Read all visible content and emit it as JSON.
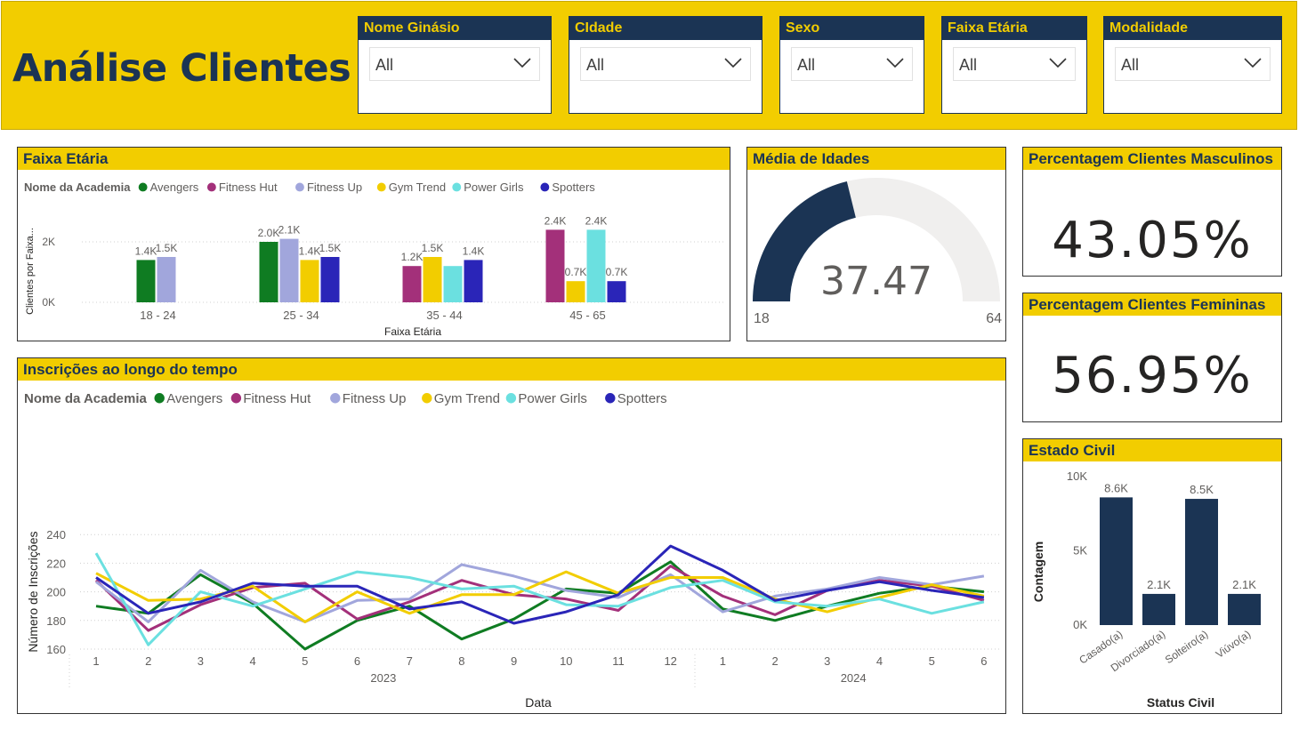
{
  "header": {
    "title": "Análise Clientes"
  },
  "slicers": [
    {
      "label": "Nome Ginásio",
      "value": "All"
    },
    {
      "label": "CIdade",
      "value": "All"
    },
    {
      "label": "Sexo",
      "value": "All"
    },
    {
      "label": "Faixa Etária",
      "value": "All"
    },
    {
      "label": "Modalidade",
      "value": "All"
    }
  ],
  "age_chart": {
    "title": "Faixa Etária",
    "legend_title": "Nome da Academia",
    "ylabel": "Clientes por Faixa...",
    "xlabel": "Faixa Etária",
    "yticks": [
      "2K",
      "0K"
    ]
  },
  "gauge": {
    "title": "Média de Idades",
    "value": "37.47",
    "min_label": "18",
    "max_label": "64",
    "min": 18,
    "max": 64,
    "current": 37.47
  },
  "male_card": {
    "title": "Percentagem Clientes Masculinos",
    "value": "43.05%"
  },
  "female_card": {
    "title": "Percentagem Clientes Femininas",
    "value": "56.95%"
  },
  "line_chart": {
    "title": "Inscrições ao longo do tempo",
    "legend_title": "Nome da Academia",
    "ylabel": "Número de Inscrições",
    "xlabel": "Data",
    "year_labels": [
      "2023",
      "2024"
    ]
  },
  "status_chart": {
    "title": "Estado Civil",
    "ylabel": "Contagem",
    "xlabel": "Status Civil",
    "yticks": [
      "10K",
      "5K",
      "0K"
    ]
  },
  "chart_data": [
    {
      "type": "bar",
      "title": "Faixa Etária",
      "xlabel": "Faixa Etária",
      "ylabel": "Clientes por Faixa...",
      "categories": [
        "18 - 24",
        "25 - 34",
        "35 - 44",
        "45 - 65"
      ],
      "ylim": [
        0,
        2.6
      ],
      "series": [
        {
          "name": "Avengers",
          "color": "#0f7c22",
          "values": [
            1.4,
            2.0,
            null,
            null
          ],
          "labels": [
            "1.4K",
            "2.0K",
            "",
            ""
          ]
        },
        {
          "name": "Fitness Hut",
          "color": "#a3307a",
          "values": [
            null,
            null,
            1.2,
            2.4
          ],
          "labels": [
            "",
            "",
            "1.2K",
            "2.4K"
          ]
        },
        {
          "name": "Fitness Up",
          "color": "#a1a6dc",
          "values": [
            1.5,
            2.1,
            null,
            null
          ],
          "labels": [
            "1.5K",
            "2.1K",
            "",
            ""
          ]
        },
        {
          "name": "Gym Trend",
          "color": "#f2cd00",
          "values": [
            null,
            1.4,
            1.5,
            0.7
          ],
          "labels": [
            "",
            "1.4K",
            "1.5K",
            "0.7K"
          ]
        },
        {
          "name": "Power Girls",
          "color": "#6be0e0",
          "values": [
            null,
            null,
            1.2,
            2.4
          ],
          "labels": [
            "",
            "",
            "",
            "2.4K"
          ]
        },
        {
          "name": "Spotters",
          "color": "#2a25b8",
          "values": [
            null,
            1.5,
            1.4,
            0.7
          ],
          "labels": [
            "",
            "1.5K",
            "1.4K",
            "0.7K"
          ]
        }
      ]
    },
    {
      "type": "line",
      "title": "Inscrições ao longo do tempo",
      "xlabel": "Data",
      "ylabel": "Número de Inscrições",
      "x": [
        "1",
        "2",
        "3",
        "4",
        "5",
        "6",
        "7",
        "8",
        "9",
        "10",
        "11",
        "12",
        "1",
        "2",
        "3",
        "4",
        "5",
        "6"
      ],
      "ylim": [
        155,
        245
      ],
      "yticks": [
        160,
        180,
        200,
        220,
        240
      ],
      "series": [
        {
          "name": "Avengers",
          "color": "#0f7c22",
          "values": [
            190,
            185,
            212,
            192,
            160,
            180,
            190,
            167,
            181,
            202,
            199,
            221,
            188,
            180,
            190,
            199,
            204,
            200
          ]
        },
        {
          "name": "Fitness Hut",
          "color": "#a3307a",
          "values": [
            208,
            173,
            191,
            203,
            206,
            181,
            193,
            208,
            198,
            195,
            187,
            218,
            197,
            184,
            201,
            208,
            204,
            194
          ]
        },
        {
          "name": "Fitness Up",
          "color": "#a1a6dc",
          "values": [
            207,
            179,
            215,
            193,
            179,
            194,
            195,
            219,
            211,
            201,
            196,
            212,
            186,
            197,
            202,
            210,
            205,
            211
          ]
        },
        {
          "name": "Gym Trend",
          "color": "#f2cd00",
          "values": [
            213,
            194,
            195,
            204,
            179,
            200,
            185,
            198,
            198,
            214,
            199,
            210,
            210,
            195,
            186,
            196,
            205,
            197
          ]
        },
        {
          "name": "Power Girls",
          "color": "#6be0e0",
          "values": [
            227,
            163,
            200,
            190,
            202,
            214,
            210,
            202,
            204,
            191,
            190,
            203,
            208,
            193,
            190,
            195,
            185,
            193
          ]
        },
        {
          "name": "Spotters",
          "color": "#2a25b8",
          "values": [
            210,
            185,
            193,
            206,
            204,
            204,
            188,
            193,
            178,
            186,
            198,
            232,
            215,
            194,
            201,
            207,
            201,
            196
          ]
        }
      ]
    },
    {
      "type": "bar",
      "title": "Estado Civil",
      "xlabel": "Status Civil",
      "ylabel": "Contagem",
      "categories": [
        "Casado(a)",
        "Divorciado(a)",
        "Solteiro(a)",
        "Viúvo(a)"
      ],
      "values": [
        8.6,
        2.1,
        8.5,
        2.1
      ],
      "labels": [
        "8.6K",
        "2.1K",
        "8.5K",
        "2.1K"
      ],
      "ylim": [
        0,
        10
      ],
      "color": "#1b3454"
    }
  ]
}
